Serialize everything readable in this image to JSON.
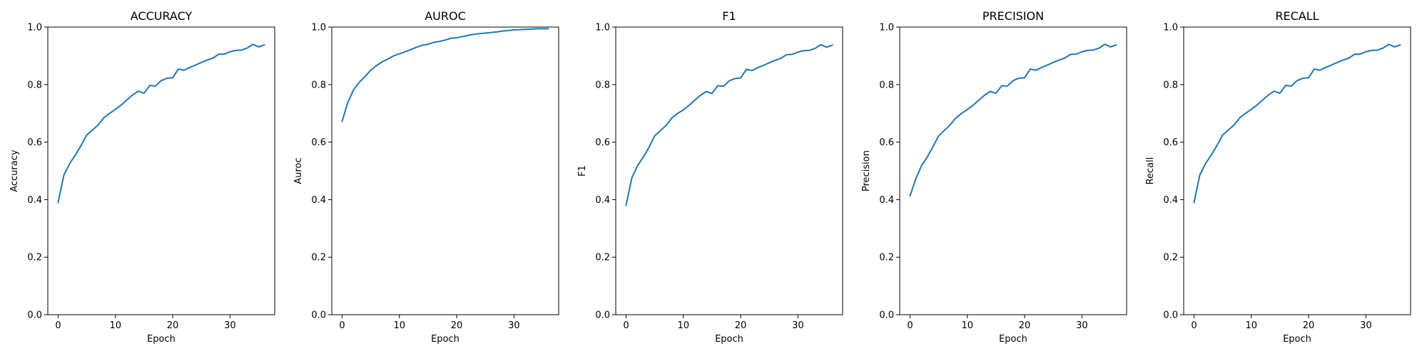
{
  "colors": {
    "line": "#1f77b4",
    "axes": "#000000",
    "background": "#ffffff"
  },
  "chart_data": [
    {
      "type": "line",
      "title": "ACCURACY",
      "xlabel": "Epoch",
      "ylabel": "Accuracy",
      "xlim": [
        -1.8,
        37.8
      ],
      "ylim": [
        0.0,
        1.0
      ],
      "xticks": [
        0,
        10,
        20,
        30
      ],
      "yticks": [
        0.0,
        0.2,
        0.4,
        0.6,
        0.8,
        1.0
      ],
      "ytick_labels": [
        "0.0",
        "0.2",
        "0.4",
        "0.6",
        "0.8",
        "1.0"
      ],
      "grid": false,
      "x": [
        0,
        1,
        2,
        3,
        4,
        5,
        6,
        7,
        8,
        9,
        10,
        11,
        12,
        13,
        14,
        15,
        16,
        17,
        18,
        19,
        20,
        21,
        22,
        23,
        24,
        25,
        26,
        27,
        28,
        29,
        30,
        31,
        32,
        33,
        34,
        35,
        36
      ],
      "series": [
        {
          "values": [
            0.39,
            0.485,
            0.525,
            0.555,
            0.588,
            0.625,
            0.642,
            0.66,
            0.685,
            0.7,
            0.714,
            0.729,
            0.747,
            0.764,
            0.777,
            0.77,
            0.797,
            0.795,
            0.814,
            0.822,
            0.824,
            0.854,
            0.85,
            0.86,
            0.868,
            0.877,
            0.885,
            0.892,
            0.905,
            0.906,
            0.914,
            0.919,
            0.92,
            0.927,
            0.94,
            0.931,
            0.938
          ]
        }
      ]
    },
    {
      "type": "line",
      "title": "AUROC",
      "xlabel": "Epoch",
      "ylabel": "Auroc",
      "xlim": [
        -1.8,
        37.8
      ],
      "ylim": [
        0.0,
        1.0
      ],
      "xticks": [
        0,
        10,
        20,
        30
      ],
      "yticks": [
        0.0,
        0.2,
        0.4,
        0.6,
        0.8,
        1.0
      ],
      "ytick_labels": [
        "0.0",
        "0.2",
        "0.4",
        "0.6",
        "0.8",
        "1.0"
      ],
      "grid": false,
      "x": [
        0,
        1,
        2,
        3,
        4,
        5,
        6,
        7,
        8,
        9,
        10,
        11,
        12,
        13,
        14,
        15,
        16,
        17,
        18,
        19,
        20,
        21,
        22,
        23,
        24,
        25,
        26,
        27,
        28,
        29,
        30,
        31,
        32,
        33,
        34,
        35,
        36
      ],
      "series": [
        {
          "values": [
            0.672,
            0.738,
            0.782,
            0.808,
            0.828,
            0.85,
            0.866,
            0.879,
            0.889,
            0.9,
            0.907,
            0.914,
            0.922,
            0.93,
            0.937,
            0.94,
            0.947,
            0.95,
            0.955,
            0.961,
            0.963,
            0.967,
            0.971,
            0.975,
            0.977,
            0.979,
            0.981,
            0.983,
            0.986,
            0.988,
            0.99,
            0.991,
            0.992,
            0.993,
            0.994,
            0.994,
            0.994
          ]
        }
      ]
    },
    {
      "type": "line",
      "title": "F1",
      "xlabel": "Epoch",
      "ylabel": "F1",
      "xlim": [
        -1.8,
        37.8
      ],
      "ylim": [
        0.0,
        1.0
      ],
      "xticks": [
        0,
        10,
        20,
        30
      ],
      "yticks": [
        0.0,
        0.2,
        0.4,
        0.6,
        0.8,
        1.0
      ],
      "ytick_labels": [
        "0.0",
        "0.2",
        "0.4",
        "0.6",
        "0.8",
        "1.0"
      ],
      "grid": false,
      "x": [
        0,
        1,
        2,
        3,
        4,
        5,
        6,
        7,
        8,
        9,
        10,
        11,
        12,
        13,
        14,
        15,
        16,
        17,
        18,
        19,
        20,
        21,
        22,
        23,
        24,
        25,
        26,
        27,
        28,
        29,
        30,
        31,
        32,
        33,
        34,
        35,
        36
      ],
      "series": [
        {
          "values": [
            0.38,
            0.475,
            0.518,
            0.548,
            0.582,
            0.622,
            0.64,
            0.658,
            0.684,
            0.7,
            0.712,
            0.728,
            0.746,
            0.763,
            0.776,
            0.769,
            0.796,
            0.794,
            0.813,
            0.821,
            0.823,
            0.853,
            0.849,
            0.859,
            0.867,
            0.876,
            0.884,
            0.891,
            0.904,
            0.905,
            0.913,
            0.918,
            0.919,
            0.926,
            0.939,
            0.93,
            0.937
          ]
        }
      ]
    },
    {
      "type": "line",
      "title": "PRECISION",
      "xlabel": "Epoch",
      "ylabel": "Precision",
      "xlim": [
        -1.8,
        37.8
      ],
      "ylim": [
        0.0,
        1.0
      ],
      "xticks": [
        0,
        10,
        20,
        30
      ],
      "yticks": [
        0.0,
        0.2,
        0.4,
        0.6,
        0.8,
        1.0
      ],
      "ytick_labels": [
        "0.0",
        "0.2",
        "0.4",
        "0.6",
        "0.8",
        "1.0"
      ],
      "grid": false,
      "x": [
        0,
        1,
        2,
        3,
        4,
        5,
        6,
        7,
        8,
        9,
        10,
        11,
        12,
        13,
        14,
        15,
        16,
        17,
        18,
        19,
        20,
        21,
        22,
        23,
        24,
        25,
        26,
        27,
        28,
        29,
        30,
        31,
        32,
        33,
        34,
        35,
        36
      ],
      "series": [
        {
          "values": [
            0.413,
            0.472,
            0.518,
            0.548,
            0.584,
            0.622,
            0.641,
            0.66,
            0.684,
            0.7,
            0.713,
            0.728,
            0.746,
            0.763,
            0.776,
            0.77,
            0.796,
            0.795,
            0.814,
            0.822,
            0.824,
            0.854,
            0.85,
            0.86,
            0.868,
            0.877,
            0.885,
            0.892,
            0.905,
            0.906,
            0.914,
            0.919,
            0.92,
            0.927,
            0.94,
            0.931,
            0.938
          ]
        }
      ]
    },
    {
      "type": "line",
      "title": "RECALL",
      "xlabel": "Epoch",
      "ylabel": "Recall",
      "xlim": [
        -1.8,
        37.8
      ],
      "ylim": [
        0.0,
        1.0
      ],
      "xticks": [
        0,
        10,
        20,
        30
      ],
      "yticks": [
        0.0,
        0.2,
        0.4,
        0.6,
        0.8,
        1.0
      ],
      "ytick_labels": [
        "0.0",
        "0.2",
        "0.4",
        "0.6",
        "0.8",
        "1.0"
      ],
      "grid": false,
      "x": [
        0,
        1,
        2,
        3,
        4,
        5,
        6,
        7,
        8,
        9,
        10,
        11,
        12,
        13,
        14,
        15,
        16,
        17,
        18,
        19,
        20,
        21,
        22,
        23,
        24,
        25,
        26,
        27,
        28,
        29,
        30,
        31,
        32,
        33,
        34,
        35,
        36
      ],
      "series": [
        {
          "values": [
            0.39,
            0.485,
            0.525,
            0.555,
            0.588,
            0.625,
            0.642,
            0.66,
            0.685,
            0.7,
            0.714,
            0.729,
            0.747,
            0.764,
            0.777,
            0.77,
            0.797,
            0.795,
            0.814,
            0.822,
            0.824,
            0.854,
            0.85,
            0.86,
            0.868,
            0.877,
            0.885,
            0.892,
            0.905,
            0.906,
            0.914,
            0.919,
            0.92,
            0.927,
            0.94,
            0.931,
            0.938
          ]
        }
      ]
    }
  ]
}
